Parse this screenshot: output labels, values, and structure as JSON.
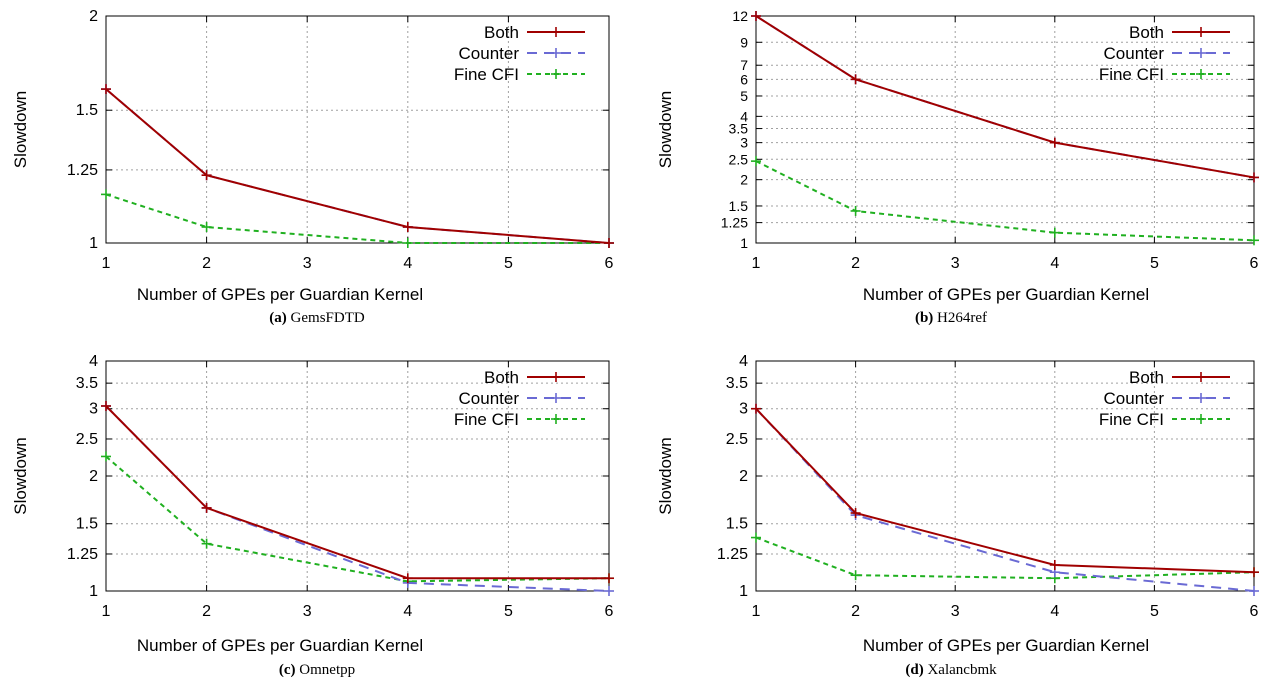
{
  "chart_data": [
    {
      "type": "line",
      "panel_label": "(a)",
      "caption": "GemsFDTD",
      "xlabel": "Number of GPEs per Guardian Kernel",
      "ylabel": "Slowdown",
      "xlim": [
        1,
        6
      ],
      "ylim": [
        1,
        2
      ],
      "y_scale": "log",
      "x_ticks": [
        "1",
        "2",
        "3",
        "4",
        "5",
        "6"
      ],
      "y_ticks": [
        {
          "v": 1,
          "label": "1"
        },
        {
          "v": 1.25,
          "label": "1.25"
        },
        {
          "v": 1.5,
          "label": "1.5"
        },
        {
          "v": 2,
          "label": "2"
        }
      ],
      "grid": true,
      "legend_position": "top-right",
      "series": [
        {
          "name": "Both",
          "x": [
            1,
            2,
            4,
            6
          ],
          "y": [
            1.6,
            1.23,
            1.05,
            1.0
          ]
        },
        {
          "name": "Counter",
          "x": [
            1,
            2,
            4,
            6
          ],
          "y": [
            1.6,
            1.23,
            1.05,
            1.0
          ]
        },
        {
          "name": "Fine CFI",
          "x": [
            1,
            2,
            4,
            6
          ],
          "y": [
            1.16,
            1.05,
            1.0,
            1.0
          ]
        }
      ]
    },
    {
      "type": "line",
      "panel_label": "(b)",
      "caption": "H264ref",
      "xlabel": "Number of GPEs per Guardian Kernel",
      "ylabel": "Slowdown",
      "xlim": [
        1,
        6
      ],
      "ylim": [
        1,
        12
      ],
      "y_scale": "log",
      "x_ticks": [
        "1",
        "2",
        "3",
        "4",
        "5",
        "6"
      ],
      "y_ticks": [
        {
          "v": 1,
          "label": "1"
        },
        {
          "v": 1.25,
          "label": "1.25"
        },
        {
          "v": 1.5,
          "label": "1.5"
        },
        {
          "v": 2,
          "label": "2"
        },
        {
          "v": 2.5,
          "label": "2.5"
        },
        {
          "v": 3,
          "label": "3"
        },
        {
          "v": 3.5,
          "label": "3.5"
        },
        {
          "v": 4,
          "label": "4"
        },
        {
          "v": 5,
          "label": "5"
        },
        {
          "v": 6,
          "label": "6"
        },
        {
          "v": 7,
          "label": "7"
        },
        {
          "v": 9,
          "label": "9"
        },
        {
          "v": 12,
          "label": "12"
        }
      ],
      "grid": true,
      "legend_position": "top-right",
      "series": [
        {
          "name": "Both",
          "x": [
            1,
            2,
            4,
            6
          ],
          "y": [
            12,
            6,
            3.0,
            2.05
          ]
        },
        {
          "name": "Counter",
          "x": [
            1,
            2,
            4,
            6
          ],
          "y": [
            12,
            6,
            3.0,
            2.05
          ]
        },
        {
          "name": "Fine CFI",
          "x": [
            1,
            2,
            4,
            6
          ],
          "y": [
            2.45,
            1.42,
            1.12,
            1.03
          ]
        }
      ]
    },
    {
      "type": "line",
      "panel_label": "(c)",
      "caption": "Omnetpp",
      "xlabel": "Number of GPEs per Guardian Kernel",
      "ylabel": "Slowdown",
      "xlim": [
        1,
        6
      ],
      "ylim": [
        1,
        4
      ],
      "y_scale": "log",
      "x_ticks": [
        "1",
        "2",
        "3",
        "4",
        "5",
        "6"
      ],
      "y_ticks": [
        {
          "v": 1,
          "label": "1"
        },
        {
          "v": 1.25,
          "label": "1.25"
        },
        {
          "v": 1.5,
          "label": "1.5"
        },
        {
          "v": 2,
          "label": "2"
        },
        {
          "v": 2.5,
          "label": "2.5"
        },
        {
          "v": 3,
          "label": "3"
        },
        {
          "v": 3.5,
          "label": "3.5"
        },
        {
          "v": 4,
          "label": "4"
        }
      ],
      "grid": true,
      "legend_position": "top-right",
      "series": [
        {
          "name": "Both",
          "x": [
            1,
            2,
            4,
            6
          ],
          "y": [
            3.05,
            1.65,
            1.08,
            1.08
          ]
        },
        {
          "name": "Counter",
          "x": [
            1,
            2,
            4,
            6
          ],
          "y": [
            3.05,
            1.65,
            1.05,
            1.0
          ]
        },
        {
          "name": "Fine CFI",
          "x": [
            1,
            2,
            4,
            6
          ],
          "y": [
            2.25,
            1.33,
            1.06,
            1.08
          ]
        }
      ]
    },
    {
      "type": "line",
      "panel_label": "(d)",
      "caption": "Xalancbmk",
      "xlabel": "Number of GPEs per Guardian Kernel",
      "ylabel": "Slowdown",
      "xlim": [
        1,
        6
      ],
      "ylim": [
        1,
        4
      ],
      "y_scale": "log",
      "x_ticks": [
        "1",
        "2",
        "3",
        "4",
        "5",
        "6"
      ],
      "y_ticks": [
        {
          "v": 1,
          "label": "1"
        },
        {
          "v": 1.25,
          "label": "1.25"
        },
        {
          "v": 1.5,
          "label": "1.5"
        },
        {
          "v": 2,
          "label": "2"
        },
        {
          "v": 2.5,
          "label": "2.5"
        },
        {
          "v": 3,
          "label": "3"
        },
        {
          "v": 3.5,
          "label": "3.5"
        },
        {
          "v": 4,
          "label": "4"
        }
      ],
      "grid": true,
      "legend_position": "top-right",
      "series": [
        {
          "name": "Both",
          "x": [
            1,
            2,
            4,
            6
          ],
          "y": [
            3.0,
            1.6,
            1.17,
            1.12
          ]
        },
        {
          "name": "Counter",
          "x": [
            1,
            2,
            4,
            6
          ],
          "y": [
            3.0,
            1.58,
            1.12,
            1.0
          ]
        },
        {
          "name": "Fine CFI",
          "x": [
            1,
            2,
            4,
            6
          ],
          "y": [
            1.38,
            1.1,
            1.08,
            1.12
          ]
        }
      ]
    }
  ],
  "style": {
    "series_colors": {
      "Both": "#a00000",
      "Counter": "#6a6ad4",
      "Fine CFI": "#20b020"
    },
    "grid_color": "#a0a0a0"
  }
}
